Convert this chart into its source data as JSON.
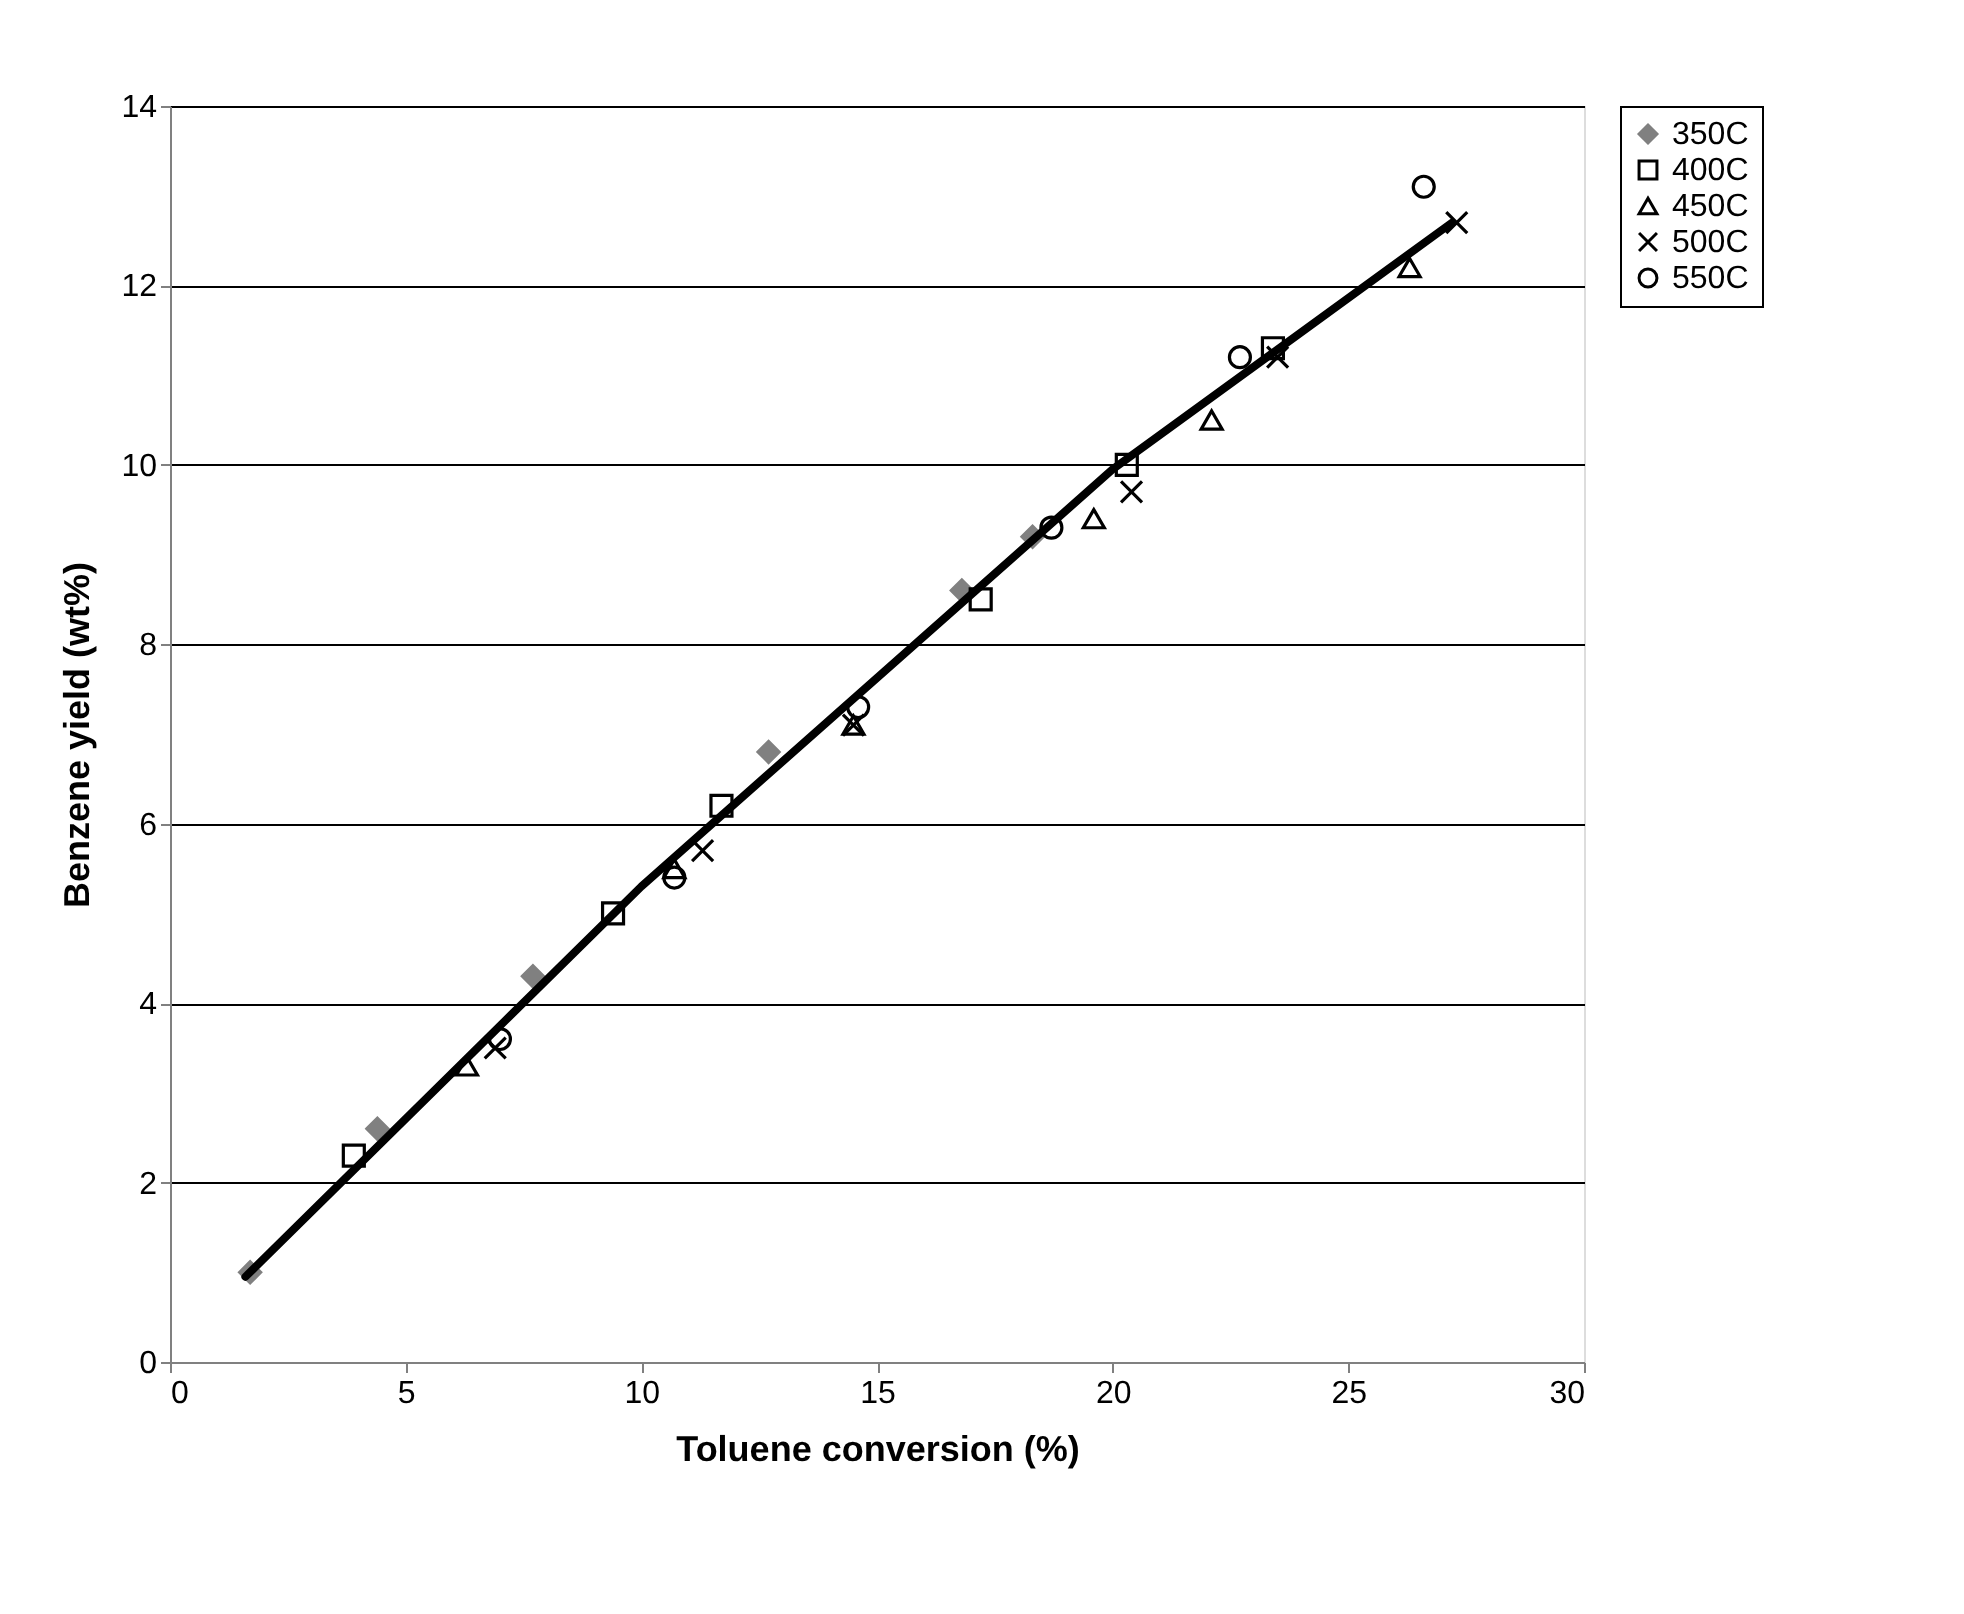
{
  "chart_data": {
    "type": "scatter",
    "xlabel": "Toluene conversion (%)",
    "ylabel": "Benzene yield (wt%)",
    "xlim": [
      0,
      30
    ],
    "xticks": [
      0,
      5,
      10,
      15,
      20,
      25,
      30
    ],
    "ylim": [
      0,
      14
    ],
    "yticks": [
      0,
      2,
      4,
      6,
      8,
      10,
      12,
      14
    ],
    "grid": "y",
    "legend": "right",
    "series": [
      {
        "name": "350C",
        "color": "#808080",
        "marker": "diamond",
        "x": [
          1.7,
          4.4,
          7.7,
          12.7,
          16.8,
          18.3
        ],
        "values": [
          1.0,
          2.6,
          4.3,
          6.8,
          8.6,
          9.2
        ]
      },
      {
        "name": "400C",
        "color": "#000000",
        "marker": "square",
        "x": [
          3.9,
          9.4,
          11.7,
          17.2,
          20.3,
          23.4
        ],
        "values": [
          2.3,
          5.0,
          6.2,
          8.5,
          10.0,
          11.3
        ]
      },
      {
        "name": "450C",
        "color": "#000000",
        "marker": "triangle",
        "x": [
          6.3,
          10.7,
          14.5,
          19.6,
          22.1,
          26.3
        ],
        "values": [
          3.3,
          5.5,
          7.1,
          9.4,
          10.5,
          12.2
        ]
      },
      {
        "name": "500C",
        "color": "#000000",
        "marker": "cross",
        "x": [
          6.9,
          11.3,
          14.5,
          20.4,
          23.5,
          27.3
        ],
        "values": [
          3.5,
          5.7,
          7.1,
          9.7,
          11.2,
          12.7
        ]
      },
      {
        "name": "550C",
        "color": "#000000",
        "marker": "circle",
        "x": [
          7.0,
          10.7,
          14.6,
          18.7,
          22.7,
          26.6
        ],
        "values": [
          3.6,
          5.4,
          7.3,
          9.3,
          11.2,
          13.1
        ]
      },
      {
        "type": "line",
        "color": "#000000",
        "marker": "none",
        "line_style": "solid",
        "x": [
          1.6,
          10.0,
          20.0,
          27.2
        ],
        "values": [
          0.95,
          5.3,
          9.95,
          12.7
        ]
      }
    ]
  }
}
